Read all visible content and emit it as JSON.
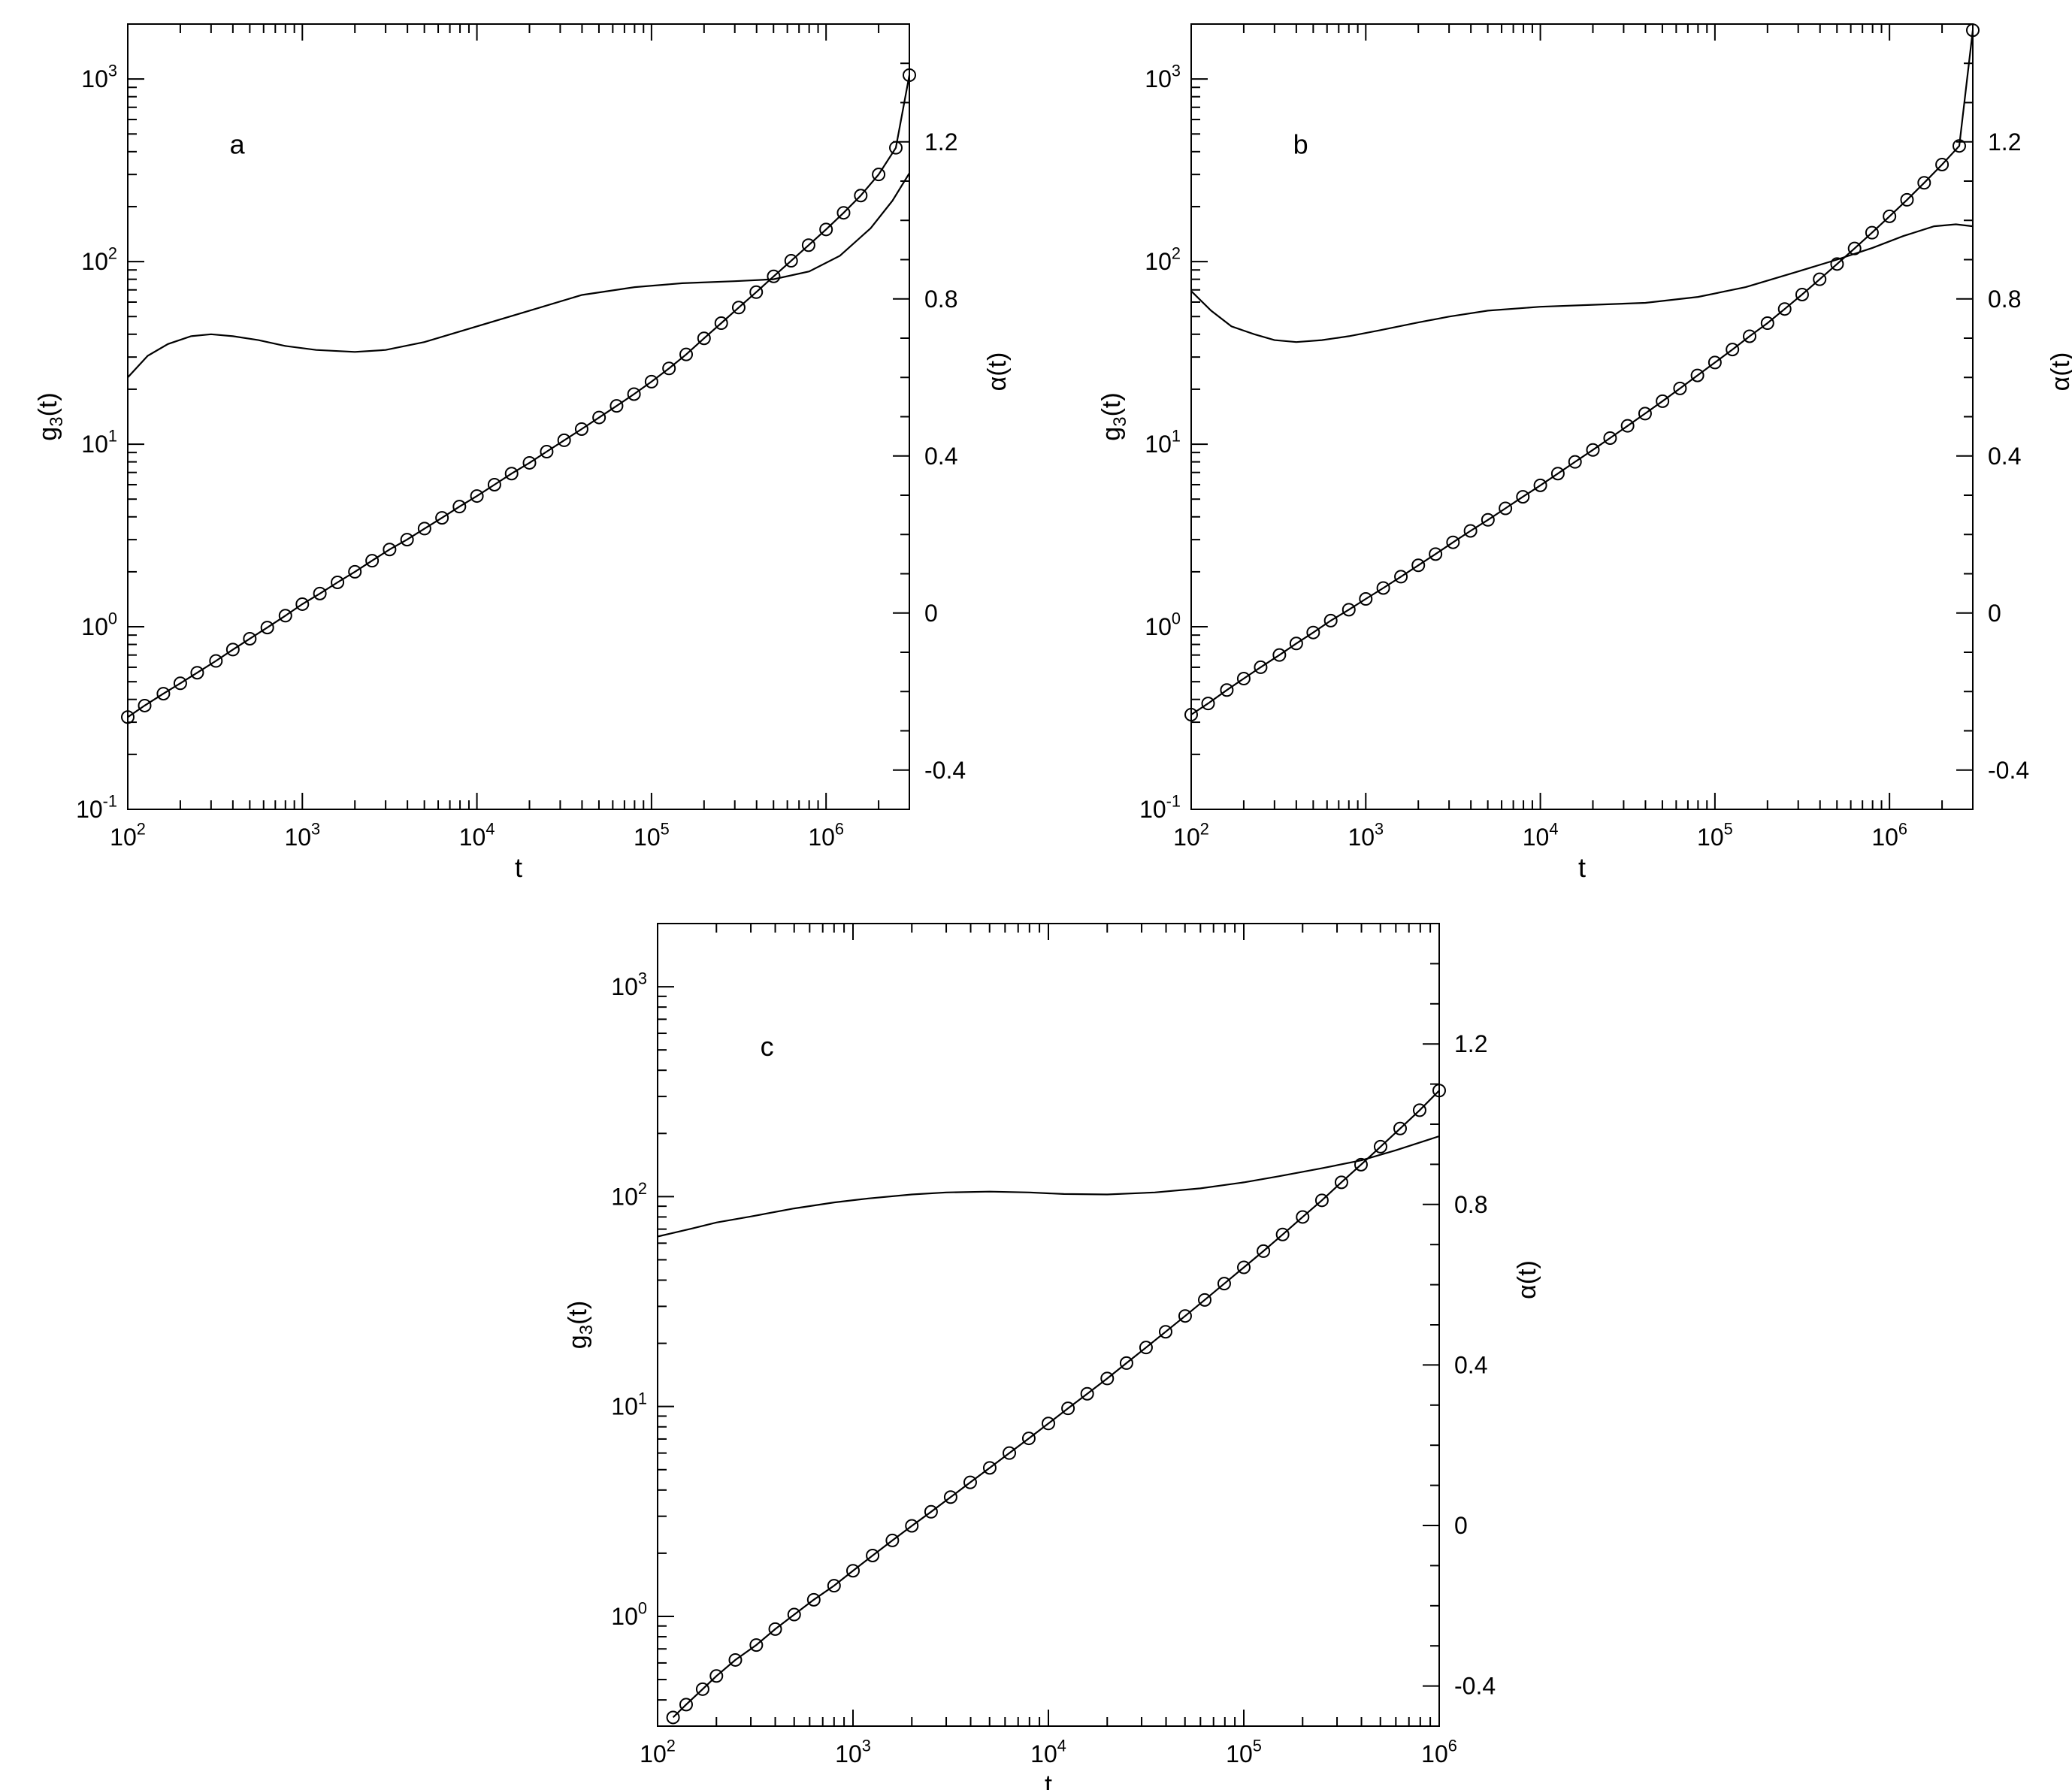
{
  "figure": {
    "background": "#ffffff",
    "ink": "#000000"
  },
  "chart_data": [
    {
      "type": "line",
      "panel_label": "a",
      "xlabel": "t",
      "ylabel_left": {
        "main": "g",
        "sub": "3",
        "tail": "(t)"
      },
      "ylabel_right": "α(t)",
      "x_scale": "log",
      "y_left_scale": "log",
      "xlim": [
        100,
        3000000
      ],
      "ylim_left": [
        0.1,
        2000
      ],
      "ylim_right": [
        -0.5,
        1.5
      ],
      "x_ticks": [
        {
          "value": 100,
          "base": "10",
          "exp": "2"
        },
        {
          "value": 1000,
          "base": "10",
          "exp": "3"
        },
        {
          "value": 10000,
          "base": "10",
          "exp": "4"
        },
        {
          "value": 100000,
          "base": "10",
          "exp": "5"
        },
        {
          "value": 1000000,
          "base": "10",
          "exp": "6"
        }
      ],
      "y_left_ticks": [
        {
          "value": 0.1,
          "base": "10",
          "exp": "-1"
        },
        {
          "value": 1,
          "base": "10",
          "exp": "0"
        },
        {
          "value": 10,
          "base": "10",
          "exp": "1"
        },
        {
          "value": 100,
          "base": "10",
          "exp": "2"
        },
        {
          "value": 1000,
          "base": "10",
          "exp": "3"
        }
      ],
      "y_right_ticks": [
        {
          "value": -0.4,
          "label": "-0.4"
        },
        {
          "value": 0,
          "label": "0"
        },
        {
          "value": 0.4,
          "label": "0.4"
        },
        {
          "value": 0.8,
          "label": "0.8"
        },
        {
          "value": 1.2,
          "label": "1.2"
        }
      ],
      "series": [
        {
          "axis": "left",
          "style": "line+open-circles",
          "x": [
            100,
            125,
            160,
            200,
            250,
            320,
            400,
            500,
            630,
            800,
            1000,
            1260,
            1590,
            2000,
            2510,
            3160,
            3980,
            5010,
            6310,
            7940,
            10000,
            12600,
            15800,
            20000,
            25100,
            31600,
            39800,
            50100,
            63100,
            79400,
            100000,
            126000,
            158000,
            200000,
            251000,
            316000,
            398000,
            501000,
            631000,
            794000,
            1000000,
            1260000,
            1580000,
            2000000,
            2510000,
            3000000
          ],
          "y": [
            0.32,
            0.37,
            0.43,
            0.49,
            0.56,
            0.65,
            0.75,
            0.86,
            0.99,
            1.15,
            1.33,
            1.52,
            1.75,
            2.0,
            2.3,
            2.65,
            3.0,
            3.45,
            3.95,
            4.55,
            5.2,
            6.0,
            6.9,
            7.9,
            9.1,
            10.5,
            12.1,
            14.0,
            16.2,
            18.8,
            22.0,
            26.0,
            31.0,
            38.0,
            46.0,
            56.0,
            68.0,
            83.0,
            101,
            123,
            150,
            185,
            230,
            300,
            420,
            1050
          ]
        },
        {
          "axis": "right",
          "style": "line",
          "x": [
            100,
            130,
            170,
            230,
            300,
            400,
            560,
            800,
            1200,
            2000,
            3000,
            5000,
            10000,
            20000,
            40000,
            80000,
            150000,
            300000,
            500000,
            800000,
            1200000,
            1800000,
            2400000,
            3000000
          ],
          "y": [
            0.6,
            0.655,
            0.685,
            0.705,
            0.71,
            0.705,
            0.695,
            0.68,
            0.67,
            0.665,
            0.67,
            0.69,
            0.73,
            0.77,
            0.81,
            0.83,
            0.84,
            0.845,
            0.85,
            0.87,
            0.91,
            0.98,
            1.05,
            1.12
          ]
        }
      ]
    },
    {
      "type": "line",
      "panel_label": "b",
      "xlabel": "t",
      "ylabel_left": {
        "main": "g",
        "sub": "3",
        "tail": "(t)"
      },
      "ylabel_right": "α(t)",
      "x_scale": "log",
      "y_left_scale": "log",
      "xlim": [
        100,
        3000000
      ],
      "ylim_left": [
        0.1,
        2000
      ],
      "ylim_right": [
        -0.5,
        1.5
      ],
      "x_ticks": [
        {
          "value": 100,
          "base": "10",
          "exp": "2"
        },
        {
          "value": 1000,
          "base": "10",
          "exp": "3"
        },
        {
          "value": 10000,
          "base": "10",
          "exp": "4"
        },
        {
          "value": 100000,
          "base": "10",
          "exp": "5"
        },
        {
          "value": 1000000,
          "base": "10",
          "exp": "6"
        }
      ],
      "y_left_ticks": [
        {
          "value": 0.1,
          "base": "10",
          "exp": "-1"
        },
        {
          "value": 1,
          "base": "10",
          "exp": "0"
        },
        {
          "value": 10,
          "base": "10",
          "exp": "1"
        },
        {
          "value": 100,
          "base": "10",
          "exp": "2"
        },
        {
          "value": 1000,
          "base": "10",
          "exp": "3"
        }
      ],
      "y_right_ticks": [
        {
          "value": -0.4,
          "label": "-0.4"
        },
        {
          "value": 0,
          "label": "0"
        },
        {
          "value": 0.4,
          "label": "0.4"
        },
        {
          "value": 0.8,
          "label": "0.8"
        },
        {
          "value": 1.2,
          "label": "1.2"
        }
      ],
      "series": [
        {
          "axis": "left",
          "style": "line+open-circles",
          "x": [
            100,
            125,
            160,
            200,
            250,
            320,
            400,
            500,
            630,
            800,
            1000,
            1260,
            1590,
            2000,
            2510,
            3160,
            3980,
            5010,
            6310,
            7940,
            10000,
            12600,
            15800,
            20000,
            25100,
            31600,
            39800,
            50100,
            63100,
            79400,
            100000,
            126000,
            158000,
            200000,
            251000,
            316000,
            398000,
            501000,
            631000,
            794000,
            1000000,
            1260000,
            1580000,
            2000000,
            2510000,
            3000000
          ],
          "y": [
            0.33,
            0.38,
            0.45,
            0.52,
            0.6,
            0.7,
            0.81,
            0.93,
            1.08,
            1.24,
            1.42,
            1.63,
            1.88,
            2.17,
            2.5,
            2.9,
            3.35,
            3.85,
            4.45,
            5.15,
            5.95,
            6.9,
            8.0,
            9.3,
            10.8,
            12.6,
            14.7,
            17.2,
            20.2,
            23.8,
            28.0,
            33.0,
            39.0,
            46.0,
            55.0,
            66.0,
            80.0,
            97.0,
            118,
            144,
            177,
            218,
            270,
            340,
            430,
            1850
          ]
        },
        {
          "axis": "right",
          "style": "line",
          "x": [
            100,
            130,
            170,
            230,
            300,
            400,
            560,
            800,
            1200,
            2000,
            3000,
            5000,
            10000,
            20000,
            40000,
            80000,
            150000,
            300000,
            500000,
            800000,
            1200000,
            1800000,
            2400000,
            3000000
          ],
          "y": [
            0.82,
            0.77,
            0.73,
            0.71,
            0.695,
            0.69,
            0.695,
            0.705,
            0.72,
            0.74,
            0.755,
            0.77,
            0.78,
            0.785,
            0.79,
            0.805,
            0.83,
            0.87,
            0.9,
            0.93,
            0.96,
            0.985,
            0.99,
            0.985
          ]
        }
      ]
    },
    {
      "type": "line",
      "panel_label": "c",
      "xlabel": "t",
      "ylabel_left": {
        "main": "g",
        "sub": "3",
        "tail": "(t)"
      },
      "ylabel_right": "α(t)",
      "x_scale": "log",
      "y_left_scale": "log",
      "xlim": [
        100,
        1000000
      ],
      "ylim_left": [
        0.3,
        2000
      ],
      "ylim_right": [
        -0.5,
        1.5
      ],
      "x_ticks": [
        {
          "value": 100,
          "base": "10",
          "exp": "2"
        },
        {
          "value": 1000,
          "base": "10",
          "exp": "3"
        },
        {
          "value": 10000,
          "base": "10",
          "exp": "4"
        },
        {
          "value": 100000,
          "base": "10",
          "exp": "5"
        },
        {
          "value": 1000000,
          "base": "10",
          "exp": "6"
        }
      ],
      "y_left_ticks": [
        {
          "value": 1,
          "base": "10",
          "exp": "0"
        },
        {
          "value": 10,
          "base": "10",
          "exp": "1"
        },
        {
          "value": 100,
          "base": "10",
          "exp": "2"
        },
        {
          "value": 1000,
          "base": "10",
          "exp": "3"
        }
      ],
      "y_right_ticks": [
        {
          "value": -0.4,
          "label": "-0.4"
        },
        {
          "value": 0,
          "label": "0"
        },
        {
          "value": 0.4,
          "label": "0.4"
        },
        {
          "value": 0.8,
          "label": "0.8"
        },
        {
          "value": 1.2,
          "label": "1.2"
        }
      ],
      "series": [
        {
          "axis": "left",
          "style": "line+open-circles",
          "x": [
            120,
            140,
            170,
            200,
            250,
            320,
            400,
            500,
            630,
            800,
            1000,
            1260,
            1590,
            2000,
            2510,
            3160,
            3980,
            5010,
            6310,
            7940,
            10000,
            12600,
            15800,
            20000,
            25100,
            31600,
            39800,
            50100,
            63100,
            79400,
            100000,
            126000,
            158000,
            200000,
            251000,
            316000,
            398000,
            501000,
            631000,
            794000,
            1000000
          ],
          "y": [
            0.33,
            0.38,
            0.45,
            0.52,
            0.62,
            0.73,
            0.87,
            1.02,
            1.2,
            1.4,
            1.65,
            1.95,
            2.3,
            2.7,
            3.15,
            3.7,
            4.35,
            5.1,
            6.0,
            7.05,
            8.3,
            9.8,
            11.5,
            13.6,
            16.1,
            19.1,
            22.7,
            27.0,
            32.2,
            38.5,
            46.0,
            55.0,
            66.0,
            80.0,
            96.0,
            117,
            142,
            173,
            211,
            258,
            320
          ]
        },
        {
          "axis": "right",
          "style": "line",
          "x": [
            100,
            150,
            200,
            300,
            500,
            800,
            1200,
            2000,
            3000,
            5000,
            8000,
            12000,
            20000,
            35000,
            60000,
            100000,
            150000,
            250000,
            400000,
            600000,
            1000000
          ],
          "y": [
            0.72,
            0.74,
            0.755,
            0.77,
            0.79,
            0.805,
            0.815,
            0.825,
            0.83,
            0.832,
            0.83,
            0.826,
            0.825,
            0.83,
            0.84,
            0.855,
            0.87,
            0.89,
            0.91,
            0.935,
            0.97
          ]
        }
      ]
    }
  ]
}
